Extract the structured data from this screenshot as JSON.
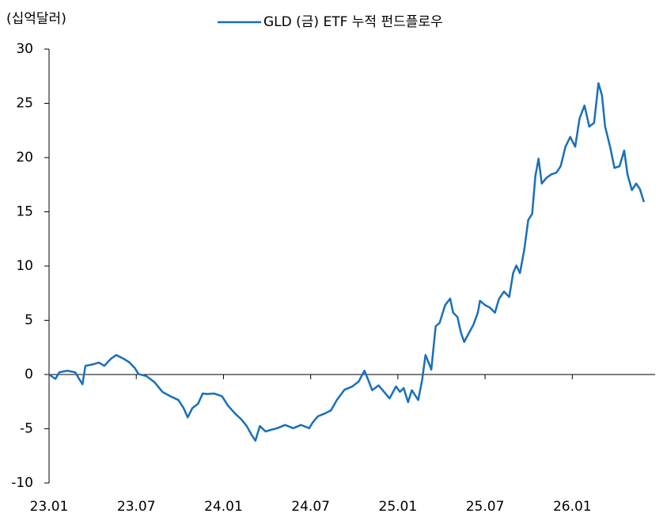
{
  "chart_data": {
    "type": "line",
    "y_label": "(십억달러)",
    "x": [
      0,
      0.44,
      0.7,
      1.25,
      1.8,
      2.07,
      2.3,
      2.5,
      3.05,
      3.43,
      3.8,
      4.25,
      4.63,
      5.07,
      5.5,
      5.9,
      6.15,
      6.7,
      7.25,
      7.8,
      8.34,
      8.9,
      9.26,
      9.54,
      9.86,
      10.25,
      10.57,
      10.9,
      11.34,
      11.9,
      12.3,
      12.8,
      13.24,
      13.6,
      13.95,
      14.2,
      14.5,
      14.9,
      15.26,
      15.7,
      16.24,
      16.8,
      17.33,
      17.9,
      18.15,
      18.5,
      18.96,
      19.4,
      19.8,
      20.33,
      20.87,
      21.3,
      21.7,
      21.96,
      22.23,
      22.67,
      23.05,
      23.43,
      23.87,
      24.14,
      24.4,
      24.7,
      24.96,
      25.4,
      25.67,
      25.9,
      26.16,
      26.3,
      26.6,
      26.87,
      27.25,
      27.6,
      27.8,
      28.1,
      28.34,
      28.56,
      28.9,
      29.2,
      29.5,
      29.65,
      30.0,
      30.3,
      30.68,
      30.95,
      31.3,
      31.66,
      31.93,
      32.15,
      32.4,
      32.7,
      32.97,
      33.24,
      33.46,
      33.68,
      33.9,
      34.2,
      34.55,
      34.9,
      35.2,
      35.53,
      35.86,
      36.2,
      36.5,
      36.84,
      37.17,
      37.5,
      37.8,
      38.04,
      38.26,
      38.6,
      38.9,
      39.25,
      39.57,
      39.8,
      40.1,
      40.4,
      40.65,
      40.93
    ],
    "series": [
      {
        "name": "GLD (금) ETF 누적 펀드플로우",
        "color": "#1a6fba",
        "values": [
          0,
          -0.4,
          0.2,
          0.35,
          0.2,
          -0.4,
          -0.9,
          0.8,
          0.95,
          1.1,
          0.8,
          1.45,
          1.8,
          1.5,
          1.15,
          0.6,
          0.05,
          -0.15,
          -0.7,
          -1.6,
          -2.0,
          -2.35,
          -3.1,
          -3.95,
          -3.1,
          -2.7,
          -1.75,
          -1.8,
          -1.75,
          -2.0,
          -2.85,
          -3.6,
          -4.15,
          -4.75,
          -5.6,
          -6.1,
          -4.75,
          -5.25,
          -5.1,
          -4.95,
          -4.65,
          -4.95,
          -4.65,
          -4.95,
          -4.4,
          -3.85,
          -3.6,
          -3.3,
          -2.35,
          -1.4,
          -1.1,
          -0.65,
          0.35,
          -0.5,
          -1.45,
          -1.0,
          -1.6,
          -2.2,
          -1.1,
          -1.6,
          -1.25,
          -2.55,
          -1.45,
          -2.35,
          -0.5,
          1.8,
          0.95,
          0.45,
          4.45,
          4.75,
          6.4,
          7.0,
          5.7,
          5.3,
          3.85,
          3.0,
          3.85,
          4.6,
          5.7,
          6.8,
          6.4,
          6.2,
          5.7,
          6.95,
          7.65,
          7.15,
          9.35,
          10.05,
          9.35,
          11.55,
          14.25,
          14.8,
          18.3,
          19.9,
          17.6,
          18.1,
          18.45,
          18.6,
          19.2,
          21.0,
          21.9,
          21.0,
          23.6,
          24.8,
          22.85,
          23.2,
          26.85,
          25.75,
          22.85,
          21.0,
          19.05,
          19.2,
          20.65,
          18.45,
          17.0,
          17.6,
          17.1,
          15.9
        ]
      }
    ],
    "xlim": [
      0,
      41.7
    ],
    "xticks": [
      {
        "value": 0,
        "label": "23.01"
      },
      {
        "value": 6,
        "label": "23.07"
      },
      {
        "value": 12,
        "label": "24.01"
      },
      {
        "value": 18,
        "label": "24.07"
      },
      {
        "value": 24,
        "label": "25.01"
      },
      {
        "value": 30,
        "label": "25.07"
      },
      {
        "value": 36,
        "label": "26.01"
      }
    ],
    "ylim": [
      -10,
      30
    ],
    "yticks": [
      -10,
      -5,
      0,
      5,
      10,
      15,
      20,
      25,
      30
    ],
    "legend": "top"
  }
}
